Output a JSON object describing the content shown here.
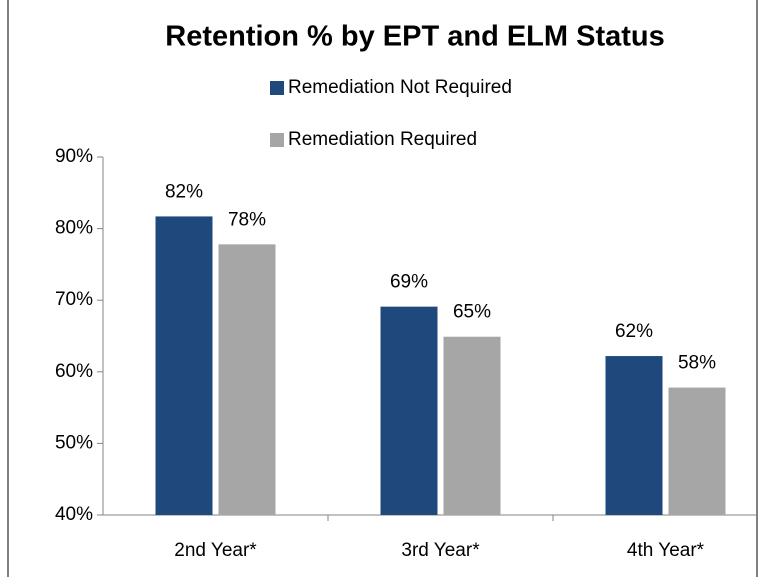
{
  "chart_data": {
    "type": "bar",
    "title": "Retention % by EPT and ELM Status",
    "categories": [
      "2nd Year*",
      "3rd Year*",
      "4th Year*"
    ],
    "series": [
      {
        "name": "Remediation Not Required",
        "color": "#1f497d",
        "values": [
          81.7,
          69.1,
          62.2
        ],
        "value_labels": [
          "82%",
          "69%",
          "62%"
        ]
      },
      {
        "name": "Remediation Required",
        "color": "#a6a6a6",
        "values": [
          77.8,
          64.9,
          57.8
        ],
        "value_labels": [
          "78%",
          "65%",
          "58%"
        ]
      }
    ],
    "ylim": [
      40,
      90
    ],
    "yticks": [
      {
        "value": 40,
        "label": "40%"
      },
      {
        "value": 50,
        "label": "50%"
      },
      {
        "value": 60,
        "label": "60%"
      },
      {
        "value": 70,
        "label": "70%"
      },
      {
        "value": 80,
        "label": "80%"
      },
      {
        "value": 90,
        "label": "90%"
      }
    ],
    "grid": false
  }
}
